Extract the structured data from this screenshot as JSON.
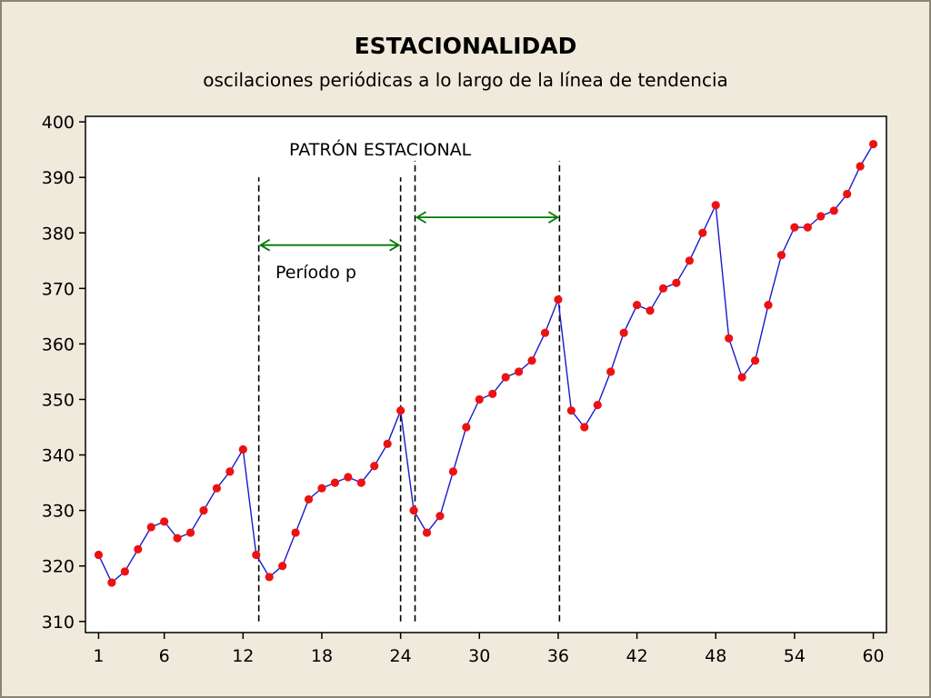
{
  "chart_data": {
    "type": "line",
    "title": "ESTACIONALIDAD",
    "subtitle": "oscilaciones periódicas a lo largo de la línea de tendencia",
    "xlabel": "",
    "ylabel": "",
    "xlim": [
      0,
      61
    ],
    "ylim": [
      308,
      401
    ],
    "xticks": [
      1,
      6,
      12,
      18,
      24,
      30,
      36,
      42,
      48,
      54,
      60
    ],
    "yticks": [
      310,
      320,
      330,
      340,
      350,
      360,
      370,
      380,
      390,
      400
    ],
    "grid": false,
    "line_color": "#1a1acc",
    "marker_color": "#ee1111",
    "arrow_color": "#007a00",
    "series": [
      {
        "x": [
          1,
          2,
          3,
          4,
          5,
          6,
          7,
          8,
          9,
          10,
          11,
          12,
          13,
          14,
          15,
          16,
          17,
          18,
          19,
          20,
          21,
          22,
          23,
          24,
          25,
          26,
          27,
          28,
          29,
          30,
          31,
          32,
          33,
          34,
          35,
          36,
          37,
          38,
          39,
          40,
          41,
          42,
          43,
          44,
          45,
          46,
          47,
          48,
          49,
          50,
          51,
          52,
          53,
          54,
          55,
          56,
          57,
          58,
          59,
          60
        ],
        "values": [
          322,
          317,
          319,
          323,
          327,
          328,
          325,
          326,
          330,
          334,
          337,
          341,
          322,
          318,
          320,
          326,
          332,
          334,
          335,
          336,
          335,
          338,
          342,
          348,
          330,
          326,
          329,
          337,
          345,
          350,
          351,
          354,
          355,
          357,
          362,
          368,
          348,
          345,
          349,
          355,
          362,
          367,
          366,
          370,
          371,
          375,
          380,
          385,
          361,
          354,
          357,
          367,
          376,
          381,
          381,
          383,
          384,
          387,
          392,
          396
        ]
      }
    ],
    "annotations": {
      "pattern_label": "PATRÓN  ESTACIONAL",
      "period_label": "Período  p",
      "vlines": [
        {
          "x": 13.2,
          "y_from": 310,
          "y_to": 390
        },
        {
          "x": 24.0,
          "y_from": 310,
          "y_to": 390
        },
        {
          "x": 25.1,
          "y_from": 310,
          "y_to": 393
        },
        {
          "x": 36.1,
          "y_from": 310,
          "y_to": 393
        }
      ],
      "arrows": [
        {
          "x1": 13.2,
          "x2": 24.0,
          "y": 377.8
        },
        {
          "x1": 25.1,
          "x2": 36.1,
          "y": 382.8
        }
      ]
    }
  }
}
